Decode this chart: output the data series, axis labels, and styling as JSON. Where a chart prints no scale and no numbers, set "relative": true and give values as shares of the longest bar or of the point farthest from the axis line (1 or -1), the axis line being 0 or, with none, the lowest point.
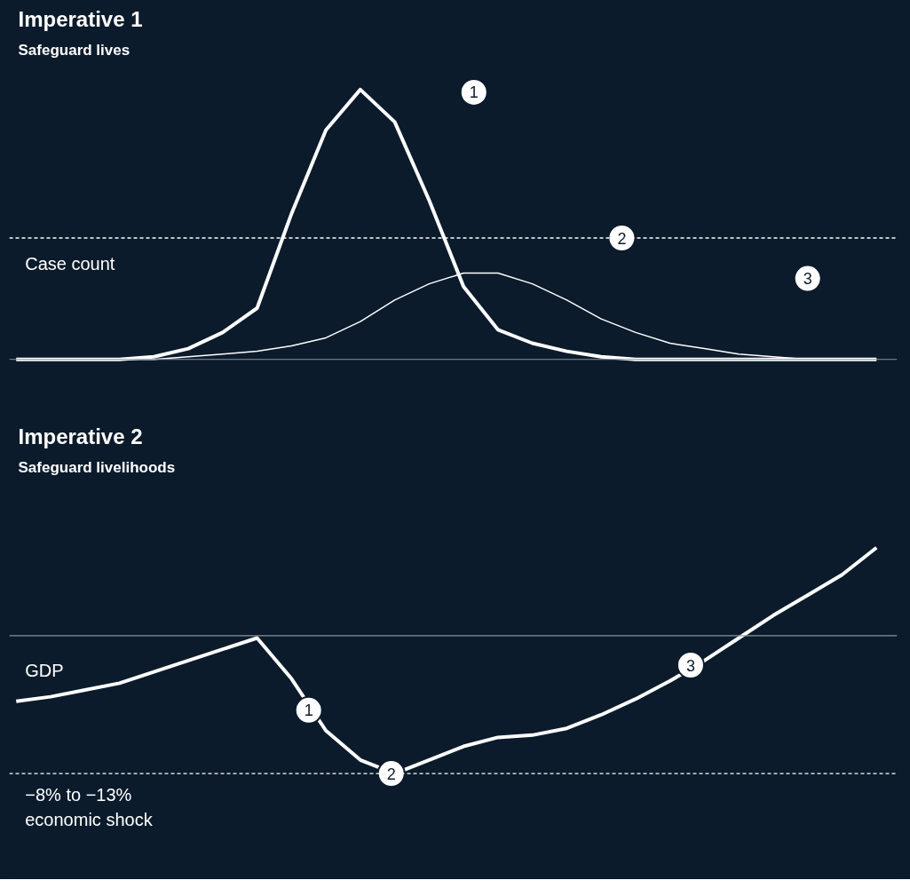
{
  "chart_data": [
    {
      "type": "line",
      "title": "Imperative 1",
      "subtitle": "Safeguard lives",
      "ylabel": "Case count",
      "relative": true,
      "categories": [
        null,
        null,
        null,
        null,
        null,
        null,
        null,
        null,
        null,
        null,
        null,
        null,
        null,
        null,
        null,
        null,
        null,
        null,
        null,
        null,
        null,
        null,
        null,
        null,
        null,
        null
      ],
      "series": [
        {
          "color": "#ffffff",
          "values": [
            0,
            0,
            0,
            0,
            0.01,
            0.04,
            0.1,
            0.19,
            0.54,
            0.85,
            1.0,
            0.88,
            0.59,
            0.27,
            0.11,
            0.06,
            0.03,
            0.01,
            0,
            0,
            0,
            0,
            0,
            0,
            0,
            0
          ]
        },
        {
          "color": "#ffffff",
          "values": [
            0,
            0,
            0,
            0,
            0,
            0.01,
            0.02,
            0.03,
            0.05,
            0.08,
            0.14,
            0.22,
            0.28,
            0.32,
            0.32,
            0.28,
            0.22,
            0.15,
            0.1,
            0.06,
            0.04,
            0.02,
            0.01,
            0,
            0,
            0
          ]
        }
      ],
      "ref_lines": [
        {
          "axis": "y",
          "value": 0.45,
          "line_style": "dashed",
          "color": "#ffffff"
        }
      ],
      "annotations": [
        "1",
        "2",
        "3"
      ]
    },
    {
      "type": "line",
      "title": "Imperative 2",
      "subtitle": "Safeguard livelihoods",
      "ylabel": "GDP",
      "relative": true,
      "categories": [
        null,
        null,
        null,
        null,
        null,
        null,
        null,
        null,
        null,
        null,
        null,
        null,
        null,
        null,
        null,
        null,
        null,
        null,
        null,
        null,
        null,
        null,
        null,
        null,
        null,
        null
      ],
      "series": [
        {
          "color": "#ffffff",
          "values": [
            0.32,
            0.34,
            0.37,
            0.4,
            0.45,
            0.5,
            0.55,
            0.6,
            0.42,
            0.19,
            0.06,
            0,
            0.06,
            0.12,
            0.16,
            0.17,
            0.2,
            0.26,
            0.33,
            0.41,
            0.5,
            0.6,
            0.7,
            0.79,
            0.88,
            1.0
          ]
        }
      ],
      "ref_lines": [
        {
          "axis": "y",
          "value": 0.61,
          "line_style": "solid",
          "color": "#8a949e"
        },
        {
          "axis": "y",
          "value": 0,
          "line_style": "dashed",
          "color": "#ffffff",
          "label": "−8% to −13%\neconomic shock"
        }
      ],
      "annotations": [
        "1",
        "2",
        "3"
      ]
    }
  ]
}
